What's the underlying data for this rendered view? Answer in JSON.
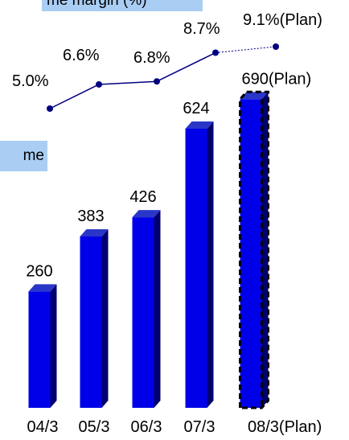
{
  "legends": {
    "margin": "me margin (%)",
    "income": "me"
  },
  "chart_data": [
    {
      "type": "line",
      "categories": [
        "04/3",
        "05/3",
        "06/3",
        "07/3",
        "08/3(Plan)"
      ],
      "values": [
        5.0,
        6.6,
        6.8,
        8.7,
        9.1
      ],
      "labels": [
        "5.0%",
        "6.6%",
        "6.8%",
        "8.7%",
        "9.1%(Plan)"
      ],
      "unit": "%"
    },
    {
      "type": "bar",
      "categories": [
        "04/3",
        "05/3",
        "06/3",
        "07/3",
        "08/3(Plan)"
      ],
      "values": [
        260,
        383,
        426,
        624,
        690
      ],
      "labels": [
        "260",
        "383",
        "426",
        "624",
        "690(Plan)"
      ],
      "colors": {
        "bar": "#0000e8",
        "bar_top": "#2a36c8",
        "bar_side": "#000070",
        "line": "#000080",
        "plan_outline": "#000000"
      }
    }
  ]
}
